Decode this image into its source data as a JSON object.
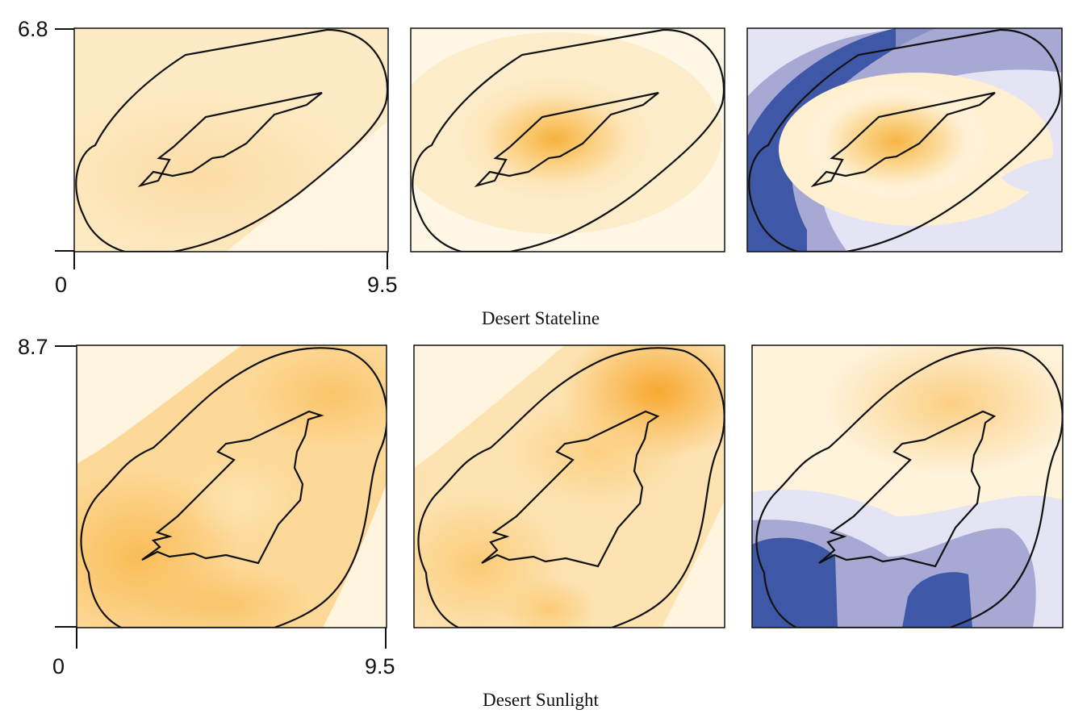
{
  "chart_data": [
    {
      "type": "heatmap",
      "title": "Desert Stateline",
      "xlim": [
        0,
        9.5
      ],
      "ylim": [
        0,
        6.8
      ],
      "x_tick_labels": [
        "0",
        "9.5"
      ],
      "y_tick_labels": [
        "6.8"
      ],
      "panels": [
        {
          "colormap": "orange-sequential",
          "hotspot_intensity": 0.35
        },
        {
          "colormap": "orange-sequential",
          "hotspot_intensity": 0.7
        },
        {
          "colormap": "blue-orange-diverging",
          "hotspot_intensity": 0.6
        }
      ]
    },
    {
      "type": "heatmap",
      "title": "Desert Sunlight",
      "xlim": [
        0,
        9.5
      ],
      "ylim": [
        0,
        8.7
      ],
      "x_tick_labels": [
        "0",
        "9.5"
      ],
      "y_tick_labels": [
        "8.7"
      ],
      "panels": [
        {
          "colormap": "orange-sequential",
          "hotspot_intensity": 0.55
        },
        {
          "colormap": "orange-sequential",
          "hotspot_intensity": 0.65
        },
        {
          "colormap": "blue-orange-diverging",
          "hotspot_intensity": 0.45
        }
      ]
    }
  ],
  "colors": {
    "orange_light": "#fff6e2",
    "orange_mid": "#fbd38b",
    "orange_dark": "#f7b13f",
    "blue_light": "#e4e4f4",
    "blue_mid": "#a7a9d4",
    "blue_dark": "#3e57a6",
    "outline": "#111111"
  }
}
